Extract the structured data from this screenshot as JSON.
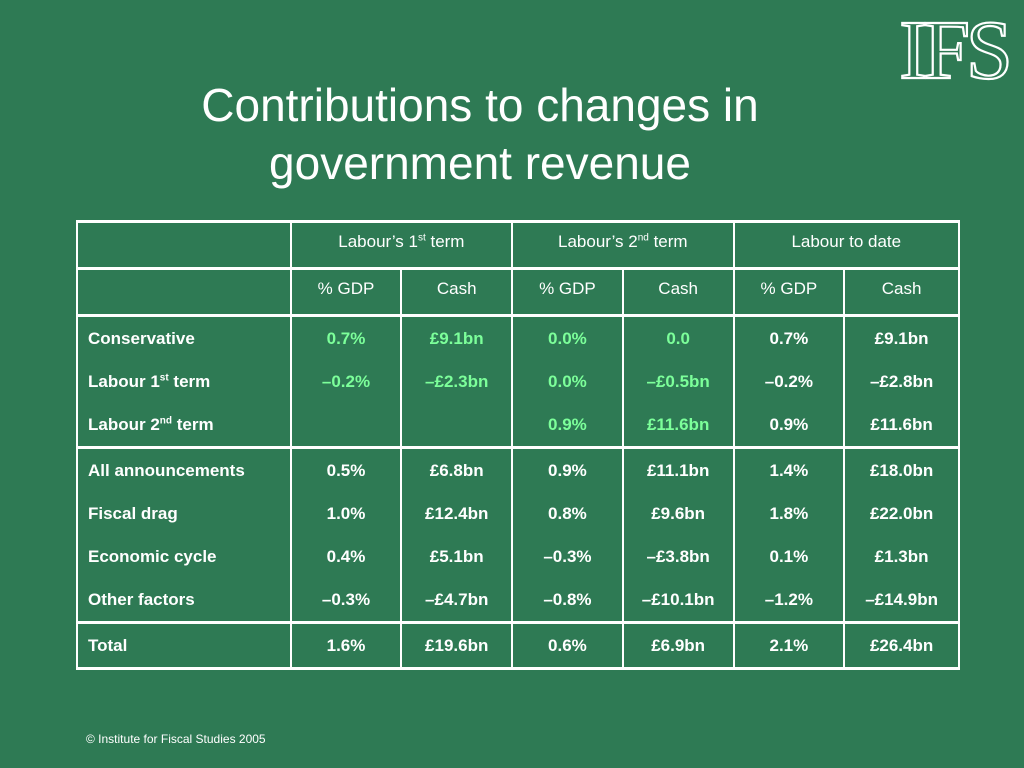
{
  "logo": {
    "text": "IFS"
  },
  "title": {
    "line1": "Contributions to changes in",
    "line2": "government revenue"
  },
  "table": {
    "group_headers": [
      {
        "text": "Labour’s 1",
        "sup": "st",
        "suffix": " term"
      },
      {
        "text": "Labour’s 2",
        "sup": "nd",
        "suffix": " term"
      },
      {
        "text": "Labour to date",
        "sup": "",
        "suffix": ""
      }
    ],
    "sub_headers": [
      "% GDP",
      "Cash",
      "% GDP",
      "Cash",
      "% GDP",
      "Cash"
    ],
    "rows": [
      {
        "label": "Conservative",
        "sup": "",
        "suffix": "",
        "cells": [
          "0.7%",
          "£9.1bn",
          "0.0%",
          "0.0",
          "0.7%",
          "£9.1bn"
        ]
      },
      {
        "label": "Labour 1",
        "sup": "st",
        "suffix": " term",
        "cells": [
          "–0.2%",
          "–£2.3bn",
          "0.0%",
          "–£0.5bn",
          "–0.2%",
          "–£2.8bn"
        ]
      },
      {
        "label": "Labour 2",
        "sup": "nd",
        "suffix": " term",
        "cells": [
          "",
          "",
          "0.9%",
          "£11.6bn",
          "0.9%",
          "£11.6bn"
        ]
      },
      {
        "label": "All announcements",
        "sup": "",
        "suffix": "",
        "cells": [
          "0.5%",
          "£6.8bn",
          "0.9%",
          "£11.1bn",
          "1.4%",
          "£18.0bn"
        ]
      },
      {
        "label": "Fiscal drag",
        "sup": "",
        "suffix": "",
        "cells": [
          "1.0%",
          "£12.4bn",
          "0.8%",
          "£9.6bn",
          "1.8%",
          "£22.0bn"
        ]
      },
      {
        "label": "Economic cycle",
        "sup": "",
        "suffix": "",
        "cells": [
          "0.4%",
          "£5.1bn",
          "–0.3%",
          "–£3.8bn",
          "0.1%",
          "£1.3bn"
        ]
      },
      {
        "label": "Other factors",
        "sup": "",
        "suffix": "",
        "cells": [
          "–0.3%",
          "–£4.7bn",
          "–0.8%",
          "–£10.1bn",
          "–1.2%",
          "–£14.9bn"
        ]
      },
      {
        "label": "Total",
        "sup": "",
        "suffix": "",
        "cells": [
          "1.6%",
          "£19.6bn",
          "0.6%",
          "£6.9bn",
          "2.1%",
          "£26.4bn"
        ]
      }
    ],
    "highlight_color": "#7cff9a"
  },
  "footer": "© Institute for Fiscal Studies 2005",
  "colors": {
    "background": "#2e7a54",
    "text": "#ffffff"
  }
}
